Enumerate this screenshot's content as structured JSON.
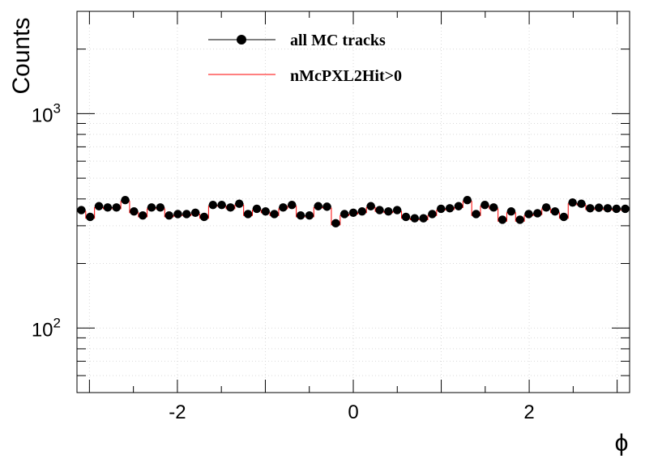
{
  "chart_data": {
    "type": "line",
    "title": "",
    "xlabel": "ϕ",
    "ylabel": "Counts",
    "xlim": [
      -3.1416,
      3.1416
    ],
    "ylim": [
      50,
      3000
    ],
    "yscale": "log",
    "grid": true,
    "legend_position": "top-center",
    "x_ticks": [
      {
        "value": -2,
        "label": "-2"
      },
      {
        "value": 0,
        "label": "0"
      },
      {
        "value": 2,
        "label": "2"
      }
    ],
    "y_ticks": [
      {
        "value": 100,
        "base": "10",
        "exp": "2"
      },
      {
        "value": 1000,
        "base": "10",
        "exp": "3"
      }
    ],
    "bin_edges": [
      -3.1416,
      3.1416
    ],
    "n_bins": 63,
    "series": [
      {
        "name": "all MC tracks",
        "style": "markers",
        "color": "#000000",
        "values": [
          355,
          330,
          370,
          365,
          365,
          395,
          350,
          335,
          365,
          365,
          335,
          340,
          340,
          345,
          330,
          375,
          375,
          365,
          380,
          340,
          360,
          350,
          340,
          365,
          375,
          335,
          335,
          370,
          368,
          308,
          340,
          345,
          350,
          370,
          355,
          350,
          355,
          330,
          325,
          325,
          340,
          360,
          362,
          370,
          395,
          340,
          375,
          365,
          320,
          350,
          320,
          340,
          343,
          365,
          350,
          330,
          385,
          380,
          362,
          364,
          362,
          360,
          360
        ]
      },
      {
        "name": "nMcPXL2Hit>0",
        "style": "step",
        "color": "#ff0000",
        "values": [
          350,
          325,
          365,
          360,
          360,
          390,
          345,
          330,
          360,
          360,
          330,
          335,
          335,
          340,
          325,
          370,
          370,
          360,
          375,
          335,
          355,
          345,
          335,
          360,
          370,
          330,
          330,
          365,
          363,
          303,
          335,
          340,
          345,
          365,
          350,
          345,
          350,
          325,
          320,
          320,
          335,
          355,
          357,
          365,
          390,
          335,
          370,
          360,
          315,
          345,
          315,
          335,
          338,
          360,
          345,
          325,
          380,
          375,
          357,
          359,
          357,
          355,
          355
        ]
      }
    ]
  }
}
